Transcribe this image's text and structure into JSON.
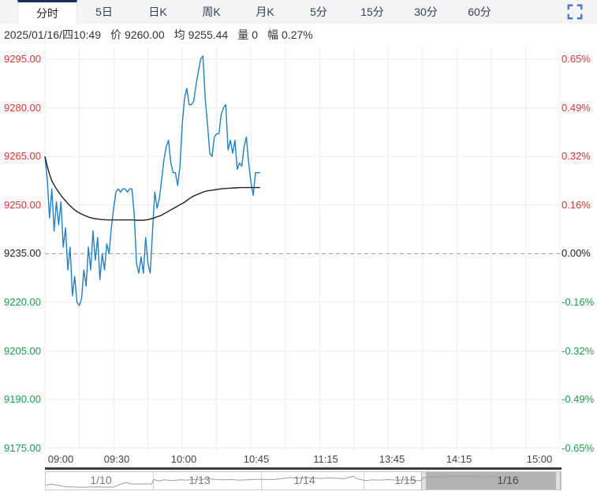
{
  "tabs": [
    "分时",
    "5日",
    "日K",
    "周K",
    "月K",
    "5分",
    "15分",
    "30分",
    "60分"
  ],
  "active_tab": "分时",
  "icons": {
    "fullscreen": "expand-corners"
  },
  "info": {
    "datetime": "2025/01/16/四10:49",
    "price_label": "价",
    "price": "9260.00",
    "avg_label": "均",
    "avg": "9255.44",
    "volume_label": "量",
    "volume": "0",
    "change_label": "幅",
    "change": "0.27%"
  },
  "colors": {
    "up_red": "#e03333",
    "down_green": "#1a9e4b",
    "neutral": "#222222",
    "price_line": "#2380c4",
    "avg_line": "#222222",
    "active_tab_border": "#16325c",
    "grid": "#ececec",
    "zero_dash": "#9a9a9a"
  },
  "navigator": {
    "days": [
      "1/10",
      "1/13",
      "1/14",
      "1/15",
      "1/16"
    ],
    "selected_day": "1/16"
  },
  "chart_data": {
    "type": "line",
    "title": "分时 intraday price chart",
    "x_axis": {
      "labels": [
        "09:00",
        "09:30",
        "10:00",
        "10:45",
        "11:15",
        "13:45",
        "14:15",
        "15:00"
      ],
      "session_minutes": 225,
      "grid_interval_minutes": 15
    },
    "y_axis": {
      "price_ticks": [
        "9295.00",
        "9280.00",
        "9265.00",
        "9250.00",
        "9235.00",
        "9220.00",
        "9205.00",
        "9190.00",
        "9175.00"
      ],
      "pct_ticks": [
        "0.65%",
        "0.49%",
        "0.32%",
        "0.16%",
        "0.00%",
        "-0.16%",
        "-0.32%",
        "-0.49%",
        "-0.65%"
      ],
      "baseline_price": 9235,
      "range": [
        9175,
        9295
      ]
    },
    "series": [
      {
        "name": "价",
        "color": "#2380c4",
        "start_minute": 0,
        "interval_minutes": 1,
        "values": [
          9265,
          9258,
          9246,
          9255,
          9242,
          9251,
          9244,
          9251,
          9237,
          9243,
          9230,
          9237,
          9222,
          9228,
          9220,
          9219,
          9221,
          9230,
          9225,
          9237,
          9230,
          9242,
          9233,
          9240,
          9227,
          9235,
          9230,
          9238,
          9235,
          9243,
          9249,
          9254,
          9255,
          9254,
          9255,
          9255,
          9254,
          9255,
          9255,
          9247,
          9232,
          9229,
          9234,
          9229,
          9240,
          9232,
          9229,
          9242,
          9254,
          9249,
          9252,
          9258,
          9264,
          9268,
          9270,
          9263,
          9260,
          9260,
          9256,
          9262,
          9275,
          9283,
          9286,
          9281,
          9281,
          9282,
          9287,
          9291,
          9295,
          9296,
          9283,
          9275,
          9266,
          9265,
          9271,
          9272,
          9272,
          9278,
          9280,
          9281,
          9267,
          9270,
          9266,
          9270,
          9261,
          9263,
          9262,
          9268,
          9271,
          9263,
          9257,
          9253,
          9260,
          9260,
          9260
        ]
      },
      {
        "name": "均",
        "color": "#222222",
        "start_minute": 0,
        "interval_minutes": 1,
        "values": [
          9265.0,
          9262.0,
          9259.5,
          9257.5,
          9256.2,
          9255.0,
          9254.0,
          9253.0,
          9252.1,
          9251.3,
          9250.5,
          9249.8,
          9249.1,
          9248.5,
          9248.0,
          9247.6,
          9247.2,
          9246.9,
          9246.6,
          9246.3,
          9246.1,
          9245.9,
          9245.8,
          9245.7,
          9245.6,
          9245.5,
          9245.5,
          9245.4,
          9245.4,
          9245.4,
          9245.4,
          9245.4,
          9245.4,
          9245.4,
          9245.4,
          9245.4,
          9245.4,
          9245.4,
          9245.4,
          9245.4,
          9245.3,
          9245.3,
          9245.3,
          9245.3,
          9245.4,
          9245.5,
          9245.7,
          9245.9,
          9246.1,
          9246.4,
          9246.6,
          9246.9,
          9247.3,
          9247.7,
          9248.1,
          9248.5,
          9248.9,
          9249.3,
          9249.7,
          9250.1,
          9250.5,
          9250.9,
          9251.4,
          9251.9,
          9252.4,
          9252.8,
          9253.1,
          9253.4,
          9253.7,
          9254.0,
          9254.2,
          9254.4,
          9254.5,
          9254.6,
          9254.7,
          9254.8,
          9254.9,
          9255.0,
          9255.1,
          9255.1,
          9255.2,
          9255.2,
          9255.3,
          9255.3,
          9255.3,
          9255.4,
          9255.4,
          9255.4,
          9255.4,
          9255.4,
          9255.4,
          9255.4,
          9255.4,
          9255.4,
          9255.4
        ]
      }
    ],
    "navigator_spark": [
      [
        0.0,
        0.8
      ],
      [
        0.01,
        0.72
      ],
      [
        0.02,
        0.78
      ],
      [
        0.04,
        0.92
      ],
      [
        0.07,
        0.95
      ],
      [
        0.1,
        0.93
      ],
      [
        0.13,
        0.95
      ],
      [
        0.155,
        0.6
      ],
      [
        0.17,
        0.72
      ],
      [
        0.19,
        0.7
      ],
      [
        0.205,
        0.72
      ],
      [
        0.21,
        0.38
      ],
      [
        0.22,
        0.48
      ],
      [
        0.23,
        0.4
      ],
      [
        0.245,
        0.46
      ],
      [
        0.26,
        0.4
      ],
      [
        0.275,
        0.42
      ],
      [
        0.29,
        0.36
      ],
      [
        0.3,
        0.42
      ],
      [
        0.315,
        0.3
      ],
      [
        0.33,
        0.38
      ],
      [
        0.345,
        0.4
      ],
      [
        0.36,
        0.38
      ],
      [
        0.375,
        0.42
      ],
      [
        0.39,
        0.4
      ],
      [
        0.42,
        0.36
      ],
      [
        0.44,
        0.38
      ],
      [
        0.46,
        0.3
      ],
      [
        0.475,
        0.22
      ],
      [
        0.49,
        0.28
      ],
      [
        0.505,
        0.24
      ],
      [
        0.52,
        0.26
      ],
      [
        0.535,
        0.3
      ],
      [
        0.55,
        0.25
      ],
      [
        0.565,
        0.28
      ],
      [
        0.58,
        0.32
      ],
      [
        0.59,
        0.2
      ],
      [
        0.598,
        0.12
      ],
      [
        0.603,
        0.3
      ],
      [
        0.62,
        0.45
      ],
      [
        0.635,
        0.4
      ],
      [
        0.65,
        0.42
      ],
      [
        0.665,
        0.38
      ],
      [
        0.68,
        0.42
      ],
      [
        0.7,
        0.4
      ],
      [
        0.715,
        0.44
      ],
      [
        0.728,
        0.46
      ],
      [
        0.735,
        0.22
      ],
      [
        0.75,
        0.16
      ],
      [
        0.765,
        0.2
      ],
      [
        0.78,
        0.12
      ],
      [
        0.8,
        0.1
      ],
      [
        0.815,
        0.14
      ],
      [
        0.83,
        0.12
      ],
      [
        0.845,
        0.16
      ],
      [
        0.86,
        0.18
      ],
      [
        0.875,
        0.17
      ]
    ]
  }
}
